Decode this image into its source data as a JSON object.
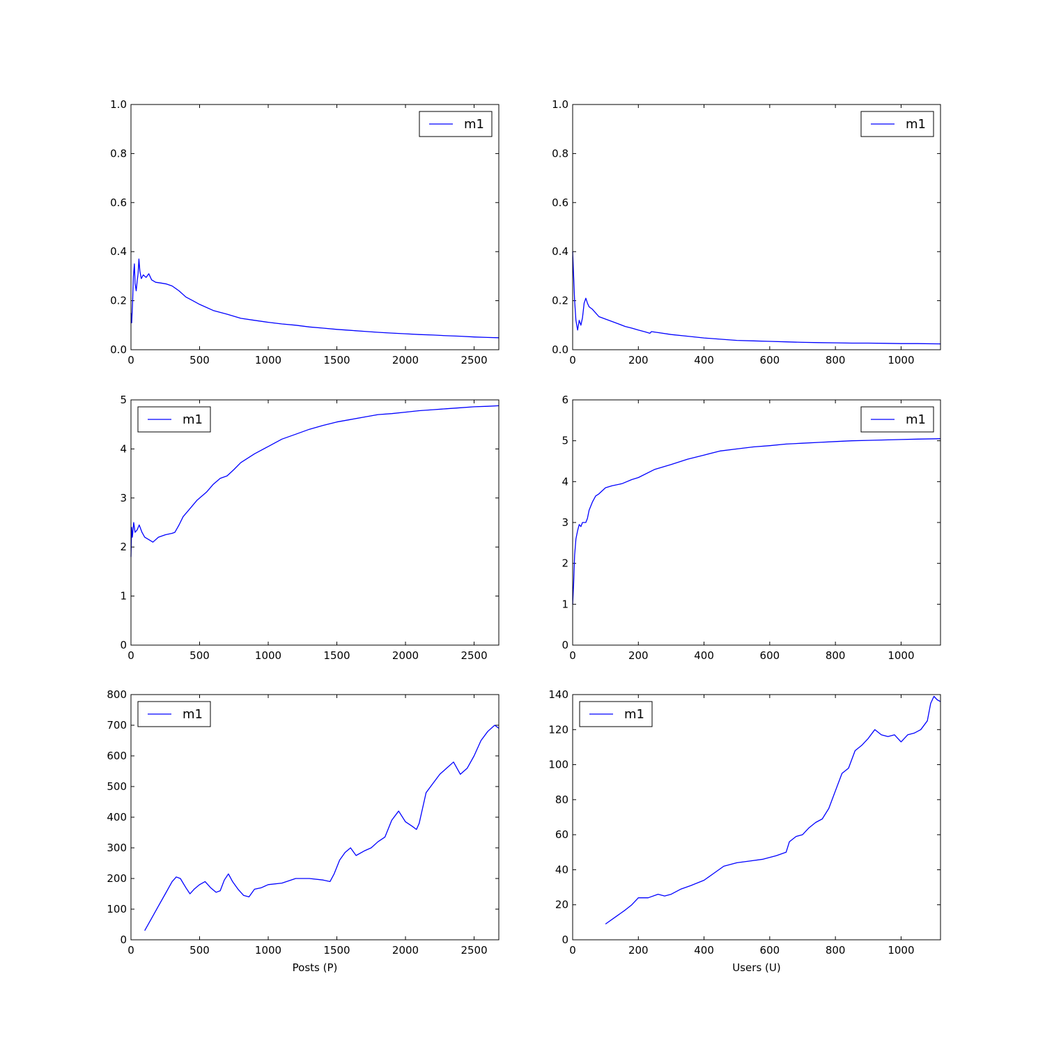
{
  "colors": {
    "line": "#0000ff",
    "axes": "#000000",
    "background": "#ffffff"
  },
  "chart_data": [
    {
      "type": "line",
      "xlabel": "",
      "ylabel": "",
      "xlim": [
        0,
        2680
      ],
      "ylim": [
        0,
        1.0
      ],
      "xticks": [
        0,
        500,
        1000,
        1500,
        2000,
        2500
      ],
      "xtick_labels": [
        "0",
        "500",
        "1000",
        "1500",
        "2000",
        "2500"
      ],
      "yticks": [
        0,
        0.2,
        0.4,
        0.6,
        0.8,
        1.0
      ],
      "ytick_labels": [
        "0.0",
        "0.2",
        "0.4",
        "0.6",
        "0.8",
        "1.0"
      ],
      "legend_position": "upper right",
      "grid": false,
      "series": [
        {
          "name": "m1",
          "x": [
            0,
            5,
            12,
            18,
            25,
            30,
            38,
            45,
            52,
            58,
            65,
            75,
            90,
            110,
            130,
            150,
            180,
            220,
            260,
            300,
            350,
            400,
            450,
            500,
            600,
            700,
            800,
            900,
            1000,
            1100,
            1200,
            1300,
            1400,
            1500,
            1600,
            1700,
            1800,
            1900,
            2000,
            2100,
            2200,
            2300,
            2400,
            2500,
            2600,
            2680
          ],
          "y": [
            0.15,
            0.11,
            0.2,
            0.3,
            0.35,
            0.27,
            0.24,
            0.28,
            0.31,
            0.37,
            0.32,
            0.29,
            0.305,
            0.295,
            0.31,
            0.285,
            0.275,
            0.272,
            0.268,
            0.26,
            0.24,
            0.215,
            0.2,
            0.185,
            0.16,
            0.145,
            0.128,
            0.12,
            0.112,
            0.105,
            0.1,
            0.093,
            0.088,
            0.083,
            0.079,
            0.075,
            0.071,
            0.068,
            0.065,
            0.062,
            0.06,
            0.057,
            0.055,
            0.052,
            0.05,
            0.049
          ]
        }
      ]
    },
    {
      "type": "line",
      "xlabel": "",
      "ylabel": "",
      "xlim": [
        0,
        1120
      ],
      "ylim": [
        0,
        1.0
      ],
      "xticks": [
        0,
        200,
        400,
        600,
        800,
        1000
      ],
      "xtick_labels": [
        "0",
        "200",
        "400",
        "600",
        "800",
        "1000"
      ],
      "yticks": [
        0,
        0.2,
        0.4,
        0.6,
        0.8,
        1.0
      ],
      "ytick_labels": [
        "0.0",
        "0.2",
        "0.4",
        "0.6",
        "0.8",
        "1.0"
      ],
      "legend_position": "upper right",
      "grid": false,
      "series": [
        {
          "name": "m1",
          "x": [
            0,
            3,
            6,
            10,
            15,
            20,
            25,
            30,
            35,
            40,
            45,
            50,
            60,
            70,
            80,
            100,
            120,
            140,
            160,
            180,
            200,
            220,
            235,
            240,
            260,
            300,
            350,
            400,
            450,
            500,
            550,
            600,
            650,
            700,
            750,
            800,
            850,
            900,
            950,
            1000,
            1050,
            1120
          ],
          "y": [
            0.4,
            0.3,
            0.2,
            0.12,
            0.08,
            0.12,
            0.1,
            0.13,
            0.19,
            0.21,
            0.19,
            0.175,
            0.165,
            0.15,
            0.135,
            0.125,
            0.115,
            0.105,
            0.095,
            0.088,
            0.08,
            0.073,
            0.067,
            0.074,
            0.07,
            0.062,
            0.055,
            0.048,
            0.043,
            0.038,
            0.036,
            0.034,
            0.032,
            0.03,
            0.029,
            0.028,
            0.027,
            0.027,
            0.026,
            0.025,
            0.025,
            0.024
          ]
        }
      ]
    },
    {
      "type": "line",
      "xlabel": "",
      "ylabel": "",
      "xlim": [
        0,
        2680
      ],
      "ylim": [
        0,
        5
      ],
      "xticks": [
        0,
        500,
        1000,
        1500,
        2000,
        2500
      ],
      "xtick_labels": [
        "0",
        "500",
        "1000",
        "1500",
        "2000",
        "2500"
      ],
      "yticks": [
        0,
        1,
        2,
        3,
        4,
        5
      ],
      "ytick_labels": [
        "0",
        "1",
        "2",
        "3",
        "4",
        "5"
      ],
      "legend_position": "upper left",
      "grid": false,
      "series": [
        {
          "name": "m1",
          "x": [
            0,
            5,
            10,
            20,
            30,
            45,
            60,
            80,
            100,
            130,
            160,
            200,
            250,
            300,
            320,
            350,
            380,
            420,
            480,
            550,
            600,
            650,
            700,
            750,
            800,
            900,
            1000,
            1100,
            1200,
            1300,
            1400,
            1500,
            1600,
            1700,
            1800,
            1900,
            2000,
            2100,
            2200,
            2300,
            2400,
            2500,
            2600,
            2680
          ],
          "y": [
            1.8,
            2.4,
            2.2,
            2.5,
            2.3,
            2.35,
            2.45,
            2.3,
            2.2,
            2.15,
            2.1,
            2.2,
            2.25,
            2.28,
            2.3,
            2.45,
            2.62,
            2.75,
            2.95,
            3.12,
            3.28,
            3.4,
            3.45,
            3.58,
            3.72,
            3.9,
            4.05,
            4.2,
            4.3,
            4.4,
            4.48,
            4.55,
            4.6,
            4.65,
            4.7,
            4.72,
            4.75,
            4.78,
            4.8,
            4.82,
            4.84,
            4.86,
            4.87,
            4.88
          ]
        }
      ]
    },
    {
      "type": "line",
      "xlabel": "",
      "ylabel": "",
      "xlim": [
        0,
        1120
      ],
      "ylim": [
        0,
        6
      ],
      "xticks": [
        0,
        200,
        400,
        600,
        800,
        1000
      ],
      "xtick_labels": [
        "0",
        "200",
        "400",
        "600",
        "800",
        "1000"
      ],
      "yticks": [
        0,
        1,
        2,
        3,
        4,
        5,
        6
      ],
      "ytick_labels": [
        "0",
        "1",
        "2",
        "3",
        "4",
        "5",
        "6"
      ],
      "legend_position": "upper right",
      "grid": false,
      "series": [
        {
          "name": "m1",
          "x": [
            0,
            3,
            6,
            10,
            15,
            20,
            25,
            30,
            40,
            45,
            50,
            60,
            70,
            80,
            100,
            120,
            150,
            180,
            200,
            250,
            300,
            350,
            400,
            450,
            500,
            550,
            600,
            650,
            700,
            750,
            800,
            850,
            900,
            950,
            1000,
            1050,
            1120
          ],
          "y": [
            1.0,
            1.5,
            2.2,
            2.6,
            2.8,
            2.95,
            2.9,
            3.0,
            3.0,
            3.1,
            3.3,
            3.5,
            3.65,
            3.7,
            3.85,
            3.9,
            3.95,
            4.05,
            4.1,
            4.3,
            4.42,
            4.55,
            4.65,
            4.75,
            4.8,
            4.85,
            4.88,
            4.92,
            4.94,
            4.96,
            4.98,
            5.0,
            5.01,
            5.02,
            5.03,
            5.04,
            5.05
          ]
        }
      ]
    },
    {
      "type": "line",
      "xlabel": "Posts (P)",
      "ylabel": "",
      "xlim": [
        0,
        2680
      ],
      "ylim": [
        0,
        800
      ],
      "xticks": [
        0,
        500,
        1000,
        1500,
        2000,
        2500
      ],
      "xtick_labels": [
        "0",
        "500",
        "1000",
        "1500",
        "2000",
        "2500"
      ],
      "yticks": [
        0,
        100,
        200,
        300,
        400,
        500,
        600,
        700,
        800
      ],
      "ytick_labels": [
        "0",
        "100",
        "200",
        "300",
        "400",
        "500",
        "600",
        "700",
        "800"
      ],
      "legend_position": "upper left",
      "grid": false,
      "series": [
        {
          "name": "m1",
          "x": [
            100,
            150,
            200,
            250,
            300,
            330,
            360,
            400,
            430,
            460,
            500,
            540,
            580,
            620,
            650,
            680,
            710,
            740,
            780,
            820,
            860,
            900,
            950,
            1000,
            1100,
            1200,
            1300,
            1400,
            1450,
            1480,
            1520,
            1560,
            1600,
            1640,
            1700,
            1750,
            1800,
            1850,
            1900,
            1950,
            2000,
            2050,
            2080,
            2100,
            2150,
            2200,
            2250,
            2300,
            2350,
            2400,
            2450,
            2500,
            2550,
            2600,
            2650,
            2680
          ],
          "y": [
            30,
            70,
            110,
            150,
            190,
            205,
            200,
            170,
            150,
            165,
            180,
            190,
            170,
            155,
            160,
            195,
            215,
            190,
            165,
            145,
            140,
            165,
            170,
            180,
            185,
            200,
            200,
            195,
            190,
            215,
            260,
            285,
            300,
            275,
            290,
            300,
            320,
            335,
            390,
            420,
            385,
            370,
            360,
            380,
            480,
            510,
            540,
            560,
            580,
            540,
            560,
            600,
            650,
            680,
            700,
            690
          ]
        }
      ]
    },
    {
      "type": "line",
      "xlabel": "Users (U)",
      "ylabel": "",
      "xlim": [
        0,
        1120
      ],
      "ylim": [
        0,
        140
      ],
      "xticks": [
        0,
        200,
        400,
        600,
        800,
        1000
      ],
      "xtick_labels": [
        "0",
        "200",
        "400",
        "600",
        "800",
        "1000"
      ],
      "yticks": [
        0,
        20,
        40,
        60,
        80,
        100,
        120,
        140
      ],
      "ytick_labels": [
        "0",
        "20",
        "40",
        "60",
        "80",
        "100",
        "120",
        "140"
      ],
      "legend_position": "upper left",
      "grid": false,
      "series": [
        {
          "name": "m1",
          "x": [
            100,
            130,
            160,
            180,
            200,
            230,
            260,
            280,
            300,
            330,
            360,
            400,
            430,
            460,
            500,
            540,
            580,
            620,
            650,
            660,
            680,
            700,
            720,
            740,
            760,
            780,
            800,
            820,
            840,
            860,
            880,
            900,
            920,
            940,
            960,
            980,
            1000,
            1020,
            1040,
            1060,
            1080,
            1090,
            1100,
            1110,
            1120
          ],
          "y": [
            9,
            13,
            17,
            20,
            24,
            24,
            26,
            25,
            26,
            29,
            31,
            34,
            38,
            42,
            44,
            45,
            46,
            48,
            50,
            56,
            59,
            60,
            64,
            67,
            69,
            75,
            85,
            95,
            98,
            108,
            111,
            115,
            120,
            117,
            116,
            117,
            113,
            117,
            118,
            120,
            125,
            135,
            139,
            137,
            136
          ]
        }
      ]
    }
  ]
}
